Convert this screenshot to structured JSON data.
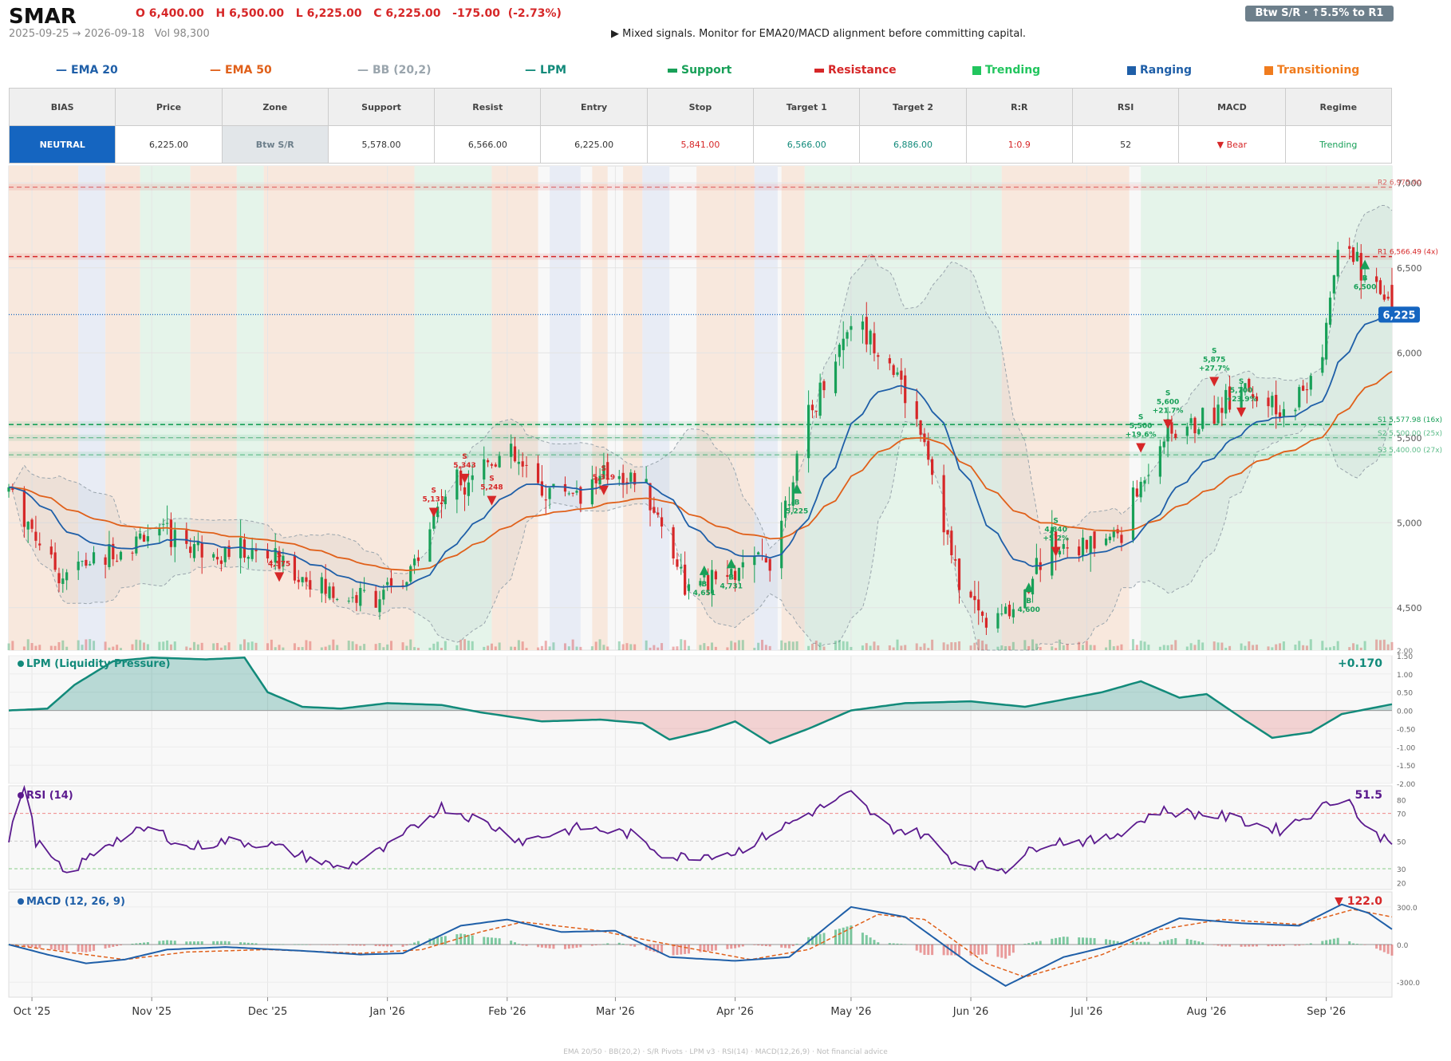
{
  "header": {
    "ticker": "SMAR",
    "ohlc": "O 6,400.00   H 6,500.00   L 6,225.00   C 6,225.00   -175.00  (-2.73%)",
    "range_vol": "2025-09-25 → 2026-09-18   Vol 98,300",
    "signal": "▶  Mixed signals. Monitor for EMA20/MACD alignment before committing capital.",
    "badge": "Btw S/R  ·  ↑5.5% to R1"
  },
  "legend": [
    {
      "label": "EMA 20",
      "color": "#1f5fa8",
      "marker": "line"
    },
    {
      "label": "EMA 50",
      "color": "#e0601a",
      "marker": "line"
    },
    {
      "label": "BB (20,2)",
      "color": "#9aa5ad",
      "marker": "line"
    },
    {
      "label": "LPM",
      "color": "#128a7a",
      "marker": "line"
    },
    {
      "label": "Support",
      "color": "#18a058",
      "marker": "bar"
    },
    {
      "label": "Resistance",
      "color": "#d62728",
      "marker": "bar"
    },
    {
      "label": "Trending",
      "color": "#22c55e",
      "marker": "square"
    },
    {
      "label": "Ranging",
      "color": "#1f5fa8",
      "marker": "square"
    },
    {
      "label": "Transitioning",
      "color": "#f07c1e",
      "marker": "square"
    }
  ],
  "summary_table": {
    "headers": [
      "BIAS",
      "Price",
      "Zone",
      "Support",
      "Resist",
      "Entry",
      "Stop",
      "Target 1",
      "Target 2",
      "R:R",
      "RSI",
      "MACD",
      "Regime"
    ],
    "values": [
      "NEUTRAL",
      "6,225.00",
      "Btw S/R",
      "5,578.00",
      "6,566.00",
      "6,225.00",
      "5,841.00",
      "6,566.00",
      "6,886.00",
      "1:0.9",
      "52",
      "▼ Bear",
      "Trending"
    ]
  },
  "colors": {
    "bull": "#18a058",
    "bear": "#d62728",
    "ema20": "#1f5fa8",
    "ema50": "#e0601a",
    "bb": "#9aa5ad",
    "lpm": "#128a7a",
    "rsi": "#5b1a8e",
    "macd": "#1f5fa8",
    "signal": "#e0601a",
    "trending": "#e5f4ea",
    "ranging": "#e8ecf5",
    "transitioning": "#f8e8dd"
  },
  "chart_data": {
    "type": "candlestick",
    "price_panel": {
      "ylim": [
        4250,
        7100
      ],
      "y_ticks": [
        4500,
        5000,
        5500,
        6000,
        6500,
        7000
      ],
      "y_tick_labels": [
        "4,500",
        "5,000",
        "5,500",
        "6,000",
        "6,500",
        "7,000"
      ],
      "volume_tick_label": "2.00",
      "last_price_label": "6,225",
      "levels": [
        {
          "label": "R2 6,975.00",
          "value": 6975,
          "kind": "resistance"
        },
        {
          "label": "R1 6,566.49 (4x)",
          "value": 6566.49,
          "kind": "resistance"
        },
        {
          "label": "S1 5,577.98 (16x)",
          "value": 5577.98,
          "kind": "support"
        },
        {
          "label": "S2 5,500.00 (25x)",
          "value": 5500,
          "kind": "support"
        },
        {
          "label": "S3 5,400.00 (27x)",
          "value": 5400,
          "kind": "support"
        }
      ],
      "price_anchors": [
        [
          "2025-09-25",
          5200
        ],
        [
          "2025-10-08",
          4700
        ],
        [
          "2025-10-20",
          4800
        ],
        [
          "2025-11-01",
          4950
        ],
        [
          "2025-11-15",
          4850
        ],
        [
          "2025-12-01",
          4800
        ],
        [
          "2025-12-20",
          4550
        ],
        [
          "2026-01-05",
          4600
        ],
        [
          "2026-01-15",
          5150
        ],
        [
          "2026-01-25",
          5350
        ],
        [
          "2026-02-01",
          5400
        ],
        [
          "2026-02-10",
          5200
        ],
        [
          "2026-02-20",
          5200
        ],
        [
          "2026-03-01",
          5300
        ],
        [
          "2026-03-08",
          5250
        ],
        [
          "2026-03-20",
          4600
        ],
        [
          "2026-04-01",
          4700
        ],
        [
          "2026-04-10",
          4800
        ],
        [
          "2026-04-20",
          5600
        ],
        [
          "2026-05-01",
          6200
        ],
        [
          "2026-05-10",
          6000
        ],
        [
          "2026-05-20",
          5500
        ],
        [
          "2026-05-28",
          4700
        ],
        [
          "2026-06-05",
          4400
        ],
        [
          "2026-06-12",
          4500
        ],
        [
          "2026-06-22",
          4900
        ],
        [
          "2026-07-01",
          4850
        ],
        [
          "2026-07-10",
          4950
        ],
        [
          "2026-07-20",
          5500
        ],
        [
          "2026-08-01",
          5600
        ],
        [
          "2026-08-10",
          5850
        ],
        [
          "2026-08-20",
          5600
        ],
        [
          "2026-08-30",
          5900
        ],
        [
          "2026-09-05",
          6700
        ],
        [
          "2026-09-12",
          6400
        ],
        [
          "2026-09-18",
          6225
        ]
      ],
      "regimes": [
        [
          "2025-09-25",
          "2025-10-13",
          "transitioning"
        ],
        [
          "2025-10-13",
          "2025-10-20",
          "ranging"
        ],
        [
          "2025-10-20",
          "2025-10-29",
          "transitioning"
        ],
        [
          "2025-10-29",
          "2025-11-11",
          "trending"
        ],
        [
          "2025-11-11",
          "2025-11-23",
          "transitioning"
        ],
        [
          "2025-11-23",
          "2025-11-30",
          "trending"
        ],
        [
          "2025-11-30",
          "2026-01-08",
          "transitioning"
        ],
        [
          "2026-01-08",
          "2026-01-28",
          "trending"
        ],
        [
          "2026-01-28",
          "2026-02-09",
          "transitioning"
        ],
        [
          "2026-02-12",
          "2026-02-20",
          "ranging"
        ],
        [
          "2026-02-23",
          "2026-02-27",
          "transitioning"
        ],
        [
          "2026-03-03",
          "2026-03-08",
          "transitioning"
        ],
        [
          "2026-03-08",
          "2026-03-15",
          "ranging"
        ],
        [
          "2026-03-22",
          "2026-04-06",
          "transitioning"
        ],
        [
          "2026-04-06",
          "2026-04-12",
          "ranging"
        ],
        [
          "2026-04-13",
          "2026-04-19",
          "transitioning"
        ],
        [
          "2026-04-19",
          "2026-06-09",
          "trending"
        ],
        [
          "2026-06-09",
          "2026-07-12",
          "transitioning"
        ],
        [
          "2026-07-15",
          "2026-09-18",
          "trending"
        ]
      ],
      "signals": [
        {
          "date": "2025-12-04",
          "price": 4680,
          "side": "S",
          "label": "S\n4,575"
        },
        {
          "date": "2026-01-13",
          "price": 5060,
          "side": "S",
          "label": "S\n5,131"
        },
        {
          "date": "2026-01-21",
          "price": 5260,
          "side": "S",
          "label": "S\n5,343"
        },
        {
          "date": "2026-01-28",
          "price": 5130,
          "side": "S",
          "label": "S\n5,248"
        },
        {
          "date": "2026-02-26",
          "price": 5190,
          "side": "S",
          "label": "S\n5,319"
        },
        {
          "date": "2026-03-24",
          "price": 4720,
          "side": "B",
          "label": "B\n4,651"
        },
        {
          "date": "2026-03-31",
          "price": 4760,
          "side": "B",
          "label": "B\n4,731"
        },
        {
          "date": "2026-04-17",
          "price": 5200,
          "side": "B",
          "label": "B\n5,225"
        },
        {
          "date": "2026-06-16",
          "price": 4620,
          "side": "B",
          "label": "B\n4,600"
        },
        {
          "date": "2026-06-23",
          "price": 4830,
          "side": "S",
          "label": "S\n4,840\n+5.2%"
        },
        {
          "date": "2026-07-15",
          "price": 5440,
          "side": "S",
          "label": "S\n5,500\n+19.6%"
        },
        {
          "date": "2026-07-22",
          "price": 5580,
          "side": "S",
          "label": "S\n5,600\n+21.7%"
        },
        {
          "date": "2026-08-03",
          "price": 5830,
          "side": "S",
          "label": "S\n5,875\n+27.7%"
        },
        {
          "date": "2026-08-10",
          "price": 5650,
          "side": "S",
          "label": "S\n5,700\n+23.9%"
        },
        {
          "date": "2026-09-11",
          "price": 6520,
          "side": "B",
          "label": "B\n6,500"
        }
      ]
    },
    "lpm_panel": {
      "title": "LPM (Liquidity Pressure)",
      "last_value": "+0.170",
      "ylim": [
        -2.0,
        1.5
      ],
      "y_ticks": [
        1.5,
        1.0,
        0.5,
        0.0,
        -0.5,
        -1.0,
        -1.5,
        -2.0
      ],
      "y_tick_labels": [
        "1.50",
        "1.00",
        "0.50",
        "0.00",
        "-0.50",
        "-1.00",
        "-1.50",
        "-2.00"
      ],
      "anchors": [
        [
          "2025-09-25",
          0.0
        ],
        [
          "2025-10-05",
          0.05
        ],
        [
          "2025-10-12",
          0.7
        ],
        [
          "2025-10-22",
          1.35
        ],
        [
          "2025-11-01",
          1.45
        ],
        [
          "2025-11-15",
          1.4
        ],
        [
          "2025-11-25",
          1.45
        ],
        [
          "2025-12-01",
          0.5
        ],
        [
          "2025-12-10",
          0.1
        ],
        [
          "2025-12-20",
          0.05
        ],
        [
          "2026-01-01",
          0.2
        ],
        [
          "2026-01-15",
          0.15
        ],
        [
          "2026-01-25",
          -0.05
        ],
        [
          "2026-02-10",
          -0.3
        ],
        [
          "2026-02-25",
          -0.25
        ],
        [
          "2026-03-08",
          -0.35
        ],
        [
          "2026-03-15",
          -0.8
        ],
        [
          "2026-03-25",
          -0.55
        ],
        [
          "2026-04-01",
          -0.3
        ],
        [
          "2026-04-10",
          -0.9
        ],
        [
          "2026-04-20",
          -0.5
        ],
        [
          "2026-05-01",
          0.0
        ],
        [
          "2026-05-15",
          0.2
        ],
        [
          "2026-06-01",
          0.25
        ],
        [
          "2026-06-15",
          0.1
        ],
        [
          "2026-06-25",
          0.3
        ],
        [
          "2026-07-05",
          0.5
        ],
        [
          "2026-07-15",
          0.8
        ],
        [
          "2026-07-25",
          0.35
        ],
        [
          "2026-08-01",
          0.45
        ],
        [
          "2026-08-10",
          -0.2
        ],
        [
          "2026-08-18",
          -0.75
        ],
        [
          "2026-08-28",
          -0.6
        ],
        [
          "2026-09-05",
          -0.1
        ],
        [
          "2026-09-18",
          0.17
        ]
      ]
    },
    "rsi_panel": {
      "title": "RSI (14)",
      "last_value": "51.5",
      "ylim": [
        15,
        90
      ],
      "y_ticks": [
        80,
        70,
        50,
        30,
        20
      ],
      "overbought": 70,
      "oversold": 30,
      "anchors": [
        [
          "2025-09-25",
          50
        ],
        [
          "2025-09-29",
          92
        ],
        [
          "2025-10-02",
          50
        ],
        [
          "2025-10-10",
          25
        ],
        [
          "2025-10-20",
          48
        ],
        [
          "2025-11-01",
          60
        ],
        [
          "2025-11-10",
          45
        ],
        [
          "2025-11-20",
          50
        ],
        [
          "2025-12-01",
          48
        ],
        [
          "2025-12-20",
          30
        ],
        [
          "2026-01-01",
          45
        ],
        [
          "2026-01-15",
          75
        ],
        [
          "2026-01-25",
          65
        ],
        [
          "2026-02-05",
          50
        ],
        [
          "2026-02-20",
          60
        ],
        [
          "2026-03-05",
          55
        ],
        [
          "2026-03-15",
          38
        ],
        [
          "2026-04-01",
          42
        ],
        [
          "2026-04-20",
          70
        ],
        [
          "2026-05-01",
          84
        ],
        [
          "2026-05-10",
          60
        ],
        [
          "2026-05-20",
          55
        ],
        [
          "2026-05-28",
          35
        ],
        [
          "2026-06-10",
          30
        ],
        [
          "2026-06-20",
          50
        ],
        [
          "2026-07-05",
          50
        ],
        [
          "2026-07-20",
          72
        ],
        [
          "2026-08-05",
          68
        ],
        [
          "2026-08-20",
          58
        ],
        [
          "2026-09-01",
          76
        ],
        [
          "2026-09-06",
          84
        ],
        [
          "2026-09-12",
          55
        ],
        [
          "2026-09-18",
          51.5
        ]
      ]
    },
    "macd_panel": {
      "title": "MACD (12, 26, 9)",
      "last_value": "▼ 122.0",
      "ylim": [
        -420,
        420
      ],
      "y_ticks": [
        300,
        0,
        -300
      ],
      "y_tick_labels": [
        "300.0",
        "0.0",
        "-300.0"
      ],
      "macd_anchors": [
        [
          "2025-09-25",
          0
        ],
        [
          "2025-10-05",
          -80
        ],
        [
          "2025-10-15",
          -150
        ],
        [
          "2025-10-25",
          -120
        ],
        [
          "2025-11-05",
          -40
        ],
        [
          "2025-11-20",
          -20
        ],
        [
          "2025-12-10",
          -50
        ],
        [
          "2025-12-25",
          -80
        ],
        [
          "2026-01-05",
          -70
        ],
        [
          "2026-01-20",
          150
        ],
        [
          "2026-02-01",
          200
        ],
        [
          "2026-02-15",
          100
        ],
        [
          "2026-03-01",
          110
        ],
        [
          "2026-03-15",
          -100
        ],
        [
          "2026-04-01",
          -130
        ],
        [
          "2026-04-15",
          -100
        ],
        [
          "2026-05-01",
          300
        ],
        [
          "2026-05-15",
          220
        ],
        [
          "2026-06-01",
          -160
        ],
        [
          "2026-06-10",
          -330
        ],
        [
          "2026-06-25",
          -100
        ],
        [
          "2026-07-10",
          10
        ],
        [
          "2026-07-25",
          210
        ],
        [
          "2026-08-10",
          170
        ],
        [
          "2026-08-25",
          150
        ],
        [
          "2026-09-05",
          320
        ],
        [
          "2026-09-12",
          250
        ],
        [
          "2026-09-18",
          122
        ]
      ],
      "signal_anchors": [
        [
          "2025-09-25",
          0
        ],
        [
          "2025-10-10",
          -60
        ],
        [
          "2025-10-25",
          -120
        ],
        [
          "2025-11-10",
          -60
        ],
        [
          "2025-12-01",
          -40
        ],
        [
          "2025-12-25",
          -70
        ],
        [
          "2026-01-10",
          -40
        ],
        [
          "2026-01-25",
          100
        ],
        [
          "2026-02-05",
          180
        ],
        [
          "2026-02-25",
          110
        ],
        [
          "2026-03-15",
          0
        ],
        [
          "2026-04-05",
          -120
        ],
        [
          "2026-04-20",
          -40
        ],
        [
          "2026-05-08",
          240
        ],
        [
          "2026-05-20",
          200
        ],
        [
          "2026-06-05",
          -150
        ],
        [
          "2026-06-15",
          -260
        ],
        [
          "2026-07-05",
          -80
        ],
        [
          "2026-07-20",
          120
        ],
        [
          "2026-08-05",
          200
        ],
        [
          "2026-08-25",
          160
        ],
        [
          "2026-09-08",
          280
        ],
        [
          "2026-09-18",
          220
        ]
      ]
    },
    "x_axis": {
      "start": "2025-09-25",
      "end": "2026-09-18",
      "ticks": [
        {
          "date": "2025-10-01",
          "label": "Oct '25"
        },
        {
          "date": "2025-11-01",
          "label": "Nov '25"
        },
        {
          "date": "2025-12-01",
          "label": "Dec '25"
        },
        {
          "date": "2026-01-01",
          "label": "Jan '26"
        },
        {
          "date": "2026-02-01",
          "label": "Feb '26"
        },
        {
          "date": "2026-03-01",
          "label": "Mar '26"
        },
        {
          "date": "2026-04-01",
          "label": "Apr '26"
        },
        {
          "date": "2026-05-01",
          "label": "May '26"
        },
        {
          "date": "2026-06-01",
          "label": "Jun '26"
        },
        {
          "date": "2026-07-01",
          "label": "Jul '26"
        },
        {
          "date": "2026-08-01",
          "label": "Aug '26"
        },
        {
          "date": "2026-09-01",
          "label": "Sep '26"
        }
      ]
    }
  },
  "footer": "EMA 20/50  ·  BB(20,2)  ·  S/R Pivots  ·  LPM v3  ·  RSI(14)  ·  MACD(12,26,9)  ·  Not financial advice"
}
